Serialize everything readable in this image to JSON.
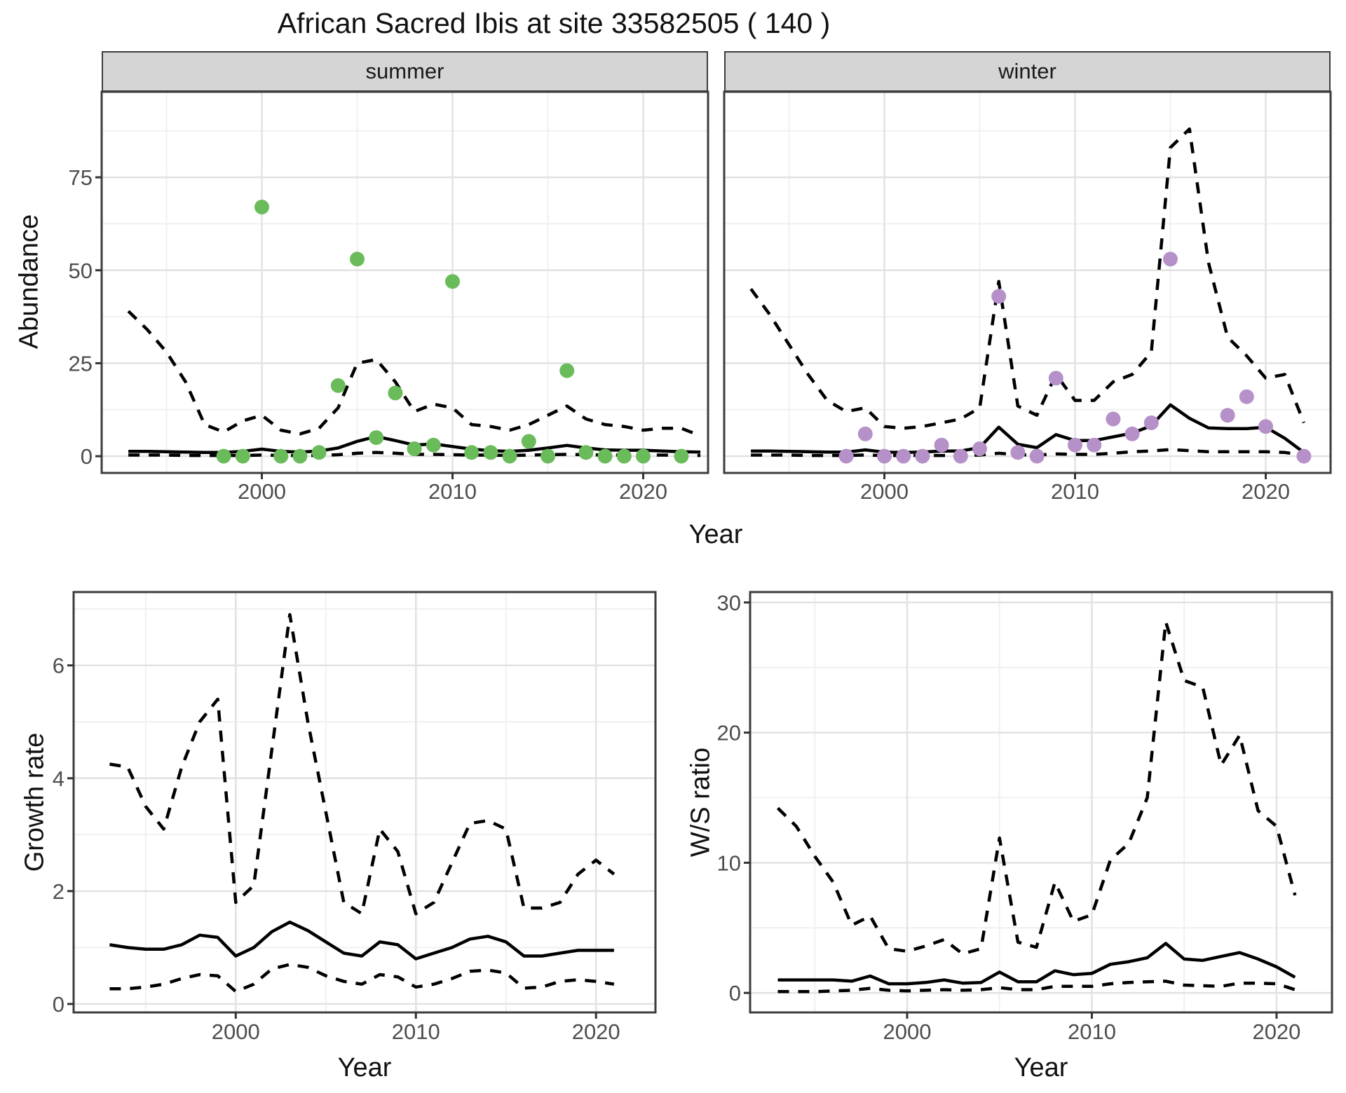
{
  "title": "African Sacred Ibis at site 33582505 ( 140 )",
  "colors": {
    "summer_point": "#6abc5b",
    "winter_point": "#b691c9",
    "line": "#000000",
    "strip_bg": "#d5d5d5",
    "panel_border": "#3c3c3c",
    "grid_major": "#e2e2e2",
    "grid_minor": "#f0f0f0",
    "tick_text": "#4d4d4d",
    "tick_mark": "#333333"
  },
  "chart_data": [
    {
      "type": "scatter",
      "facet_label": "summer",
      "xlabel": "Year",
      "ylabel": "Abundance",
      "xlim": [
        1991.6,
        2023.4
      ],
      "ylim": [
        -4.5,
        98
      ],
      "x_ticks": [
        2000,
        2010,
        2020
      ],
      "x_minor": [
        1995,
        2005,
        2015
      ],
      "y_ticks": [
        0,
        25,
        50,
        75
      ],
      "y_minor": [
        12.5,
        37.5,
        62.5,
        87.5
      ],
      "points": {
        "x": [
          1998,
          1999,
          2000,
          2001,
          2002,
          2003,
          2004,
          2005,
          2006,
          2007,
          2008,
          2009,
          2010,
          2011,
          2012,
          2013,
          2014,
          2015,
          2016,
          2017,
          2018,
          2019,
          2020,
          2022
        ],
        "y": [
          0,
          0,
          67,
          0,
          0,
          1,
          19,
          53,
          5,
          17,
          2,
          3,
          47,
          1,
          1,
          0,
          4,
          0,
          23,
          1,
          0,
          0,
          0,
          0
        ]
      },
      "series": [
        {
          "name": "fit",
          "style": "solid",
          "x": [
            1993,
            1994,
            1995,
            1996,
            1997,
            1998,
            1999,
            2000,
            2001,
            2002,
            2003,
            2004,
            2005,
            2006,
            2007,
            2008,
            2009,
            2010,
            2011,
            2012,
            2013,
            2014,
            2015,
            2016,
            2017,
            2018,
            2019,
            2020,
            2021,
            2022,
            2023
          ],
          "y": [
            1.3,
            1.3,
            1.2,
            1.1,
            1.0,
            1.0,
            1.3,
            1.9,
            1.3,
            1.1,
            1.4,
            2.2,
            4.0,
            5.3,
            4.2,
            3.0,
            3.3,
            2.6,
            1.9,
            1.5,
            1.3,
            1.6,
            2.2,
            2.9,
            2.2,
            1.7,
            1.6,
            1.6,
            1.4,
            1.2,
            1.1
          ]
        },
        {
          "name": "upper-ci",
          "style": "dashed",
          "x": [
            1993,
            1994,
            1995,
            1996,
            1997,
            1998,
            1999,
            2000,
            2001,
            2002,
            2003,
            2004,
            2005,
            2006,
            2007,
            2008,
            2009,
            2010,
            2011,
            2012,
            2013,
            2014,
            2015,
            2016,
            2017,
            2018,
            2019,
            2020,
            2021,
            2022,
            2023
          ],
          "y": [
            39,
            34,
            28,
            20,
            8.5,
            6.5,
            9.5,
            11,
            7,
            6,
            7.5,
            13,
            25,
            26,
            20,
            12,
            14,
            13,
            8.5,
            8,
            7,
            8.5,
            11,
            13.5,
            10,
            8.5,
            8,
            7,
            7.5,
            7.5,
            5.5
          ]
        },
        {
          "name": "lower-ci",
          "style": "dashed",
          "x": [
            1993,
            1994,
            1995,
            1996,
            1997,
            1998,
            1999,
            2000,
            2001,
            2002,
            2003,
            2004,
            2005,
            2006,
            2007,
            2008,
            2009,
            2010,
            2011,
            2012,
            2013,
            2014,
            2015,
            2016,
            2017,
            2018,
            2019,
            2020,
            2021,
            2022,
            2023
          ],
          "y": [
            0.3,
            0.3,
            0.3,
            0.2,
            0.2,
            0.2,
            0.2,
            0.3,
            0.2,
            0.2,
            0.2,
            0.4,
            0.8,
            1.0,
            0.8,
            0.5,
            0.5,
            0.4,
            0.3,
            0.3,
            0.2,
            0.3,
            0.4,
            0.5,
            0.4,
            0.3,
            0.3,
            0.3,
            0.3,
            0.2,
            0.2
          ]
        }
      ]
    },
    {
      "type": "scatter",
      "facet_label": "winter",
      "xlabel": "Year",
      "ylabel": "Abundance",
      "xlim": [
        1991.6,
        2023.4
      ],
      "ylim": [
        -4.5,
        98
      ],
      "x_ticks": [
        2000,
        2010,
        2020
      ],
      "x_minor": [
        1995,
        2005,
        2015
      ],
      "y_ticks": [
        0,
        25,
        50,
        75
      ],
      "y_minor": [
        12.5,
        37.5,
        62.5,
        87.5
      ],
      "points": {
        "x": [
          1998,
          1999,
          2000,
          2001,
          2002,
          2003,
          2004,
          2005,
          2006,
          2007,
          2008,
          2009,
          2010,
          2011,
          2012,
          2013,
          2014,
          2015,
          2018,
          2019,
          2020,
          2022
        ],
        "y": [
          0,
          6,
          0,
          0,
          0,
          3,
          0,
          2,
          43,
          1,
          0,
          21,
          3,
          3,
          10,
          6,
          9,
          53,
          11,
          16,
          8,
          0
        ]
      },
      "series": [
        {
          "name": "fit",
          "style": "solid",
          "x": [
            1993,
            1994,
            1995,
            1996,
            1997,
            1998,
            1999,
            2000,
            2001,
            2002,
            2003,
            2004,
            2005,
            2006,
            2007,
            2008,
            2009,
            2010,
            2011,
            2012,
            2013,
            2014,
            2015,
            2016,
            2017,
            2018,
            2019,
            2020,
            2021,
            2022
          ],
          "y": [
            1.4,
            1.4,
            1.3,
            1.2,
            1.1,
            1.1,
            1.7,
            1.1,
            1.0,
            1.1,
            1.4,
            1.4,
            2.3,
            7.8,
            3.2,
            2.3,
            5.8,
            4.2,
            4.2,
            5.2,
            6.2,
            8.2,
            13.8,
            10.2,
            7.6,
            7.4,
            7.4,
            7.8,
            4.8,
            1.0
          ]
        },
        {
          "name": "upper-ci",
          "style": "dashed",
          "x": [
            1993,
            1994,
            1995,
            1996,
            1997,
            1998,
            1999,
            2000,
            2001,
            2002,
            2003,
            2004,
            2005,
            2006,
            2007,
            2008,
            2009,
            2010,
            2011,
            2012,
            2013,
            2014,
            2015,
            2016,
            2017,
            2018,
            2019,
            2020,
            2021,
            2022
          ],
          "y": [
            45,
            38,
            30,
            22,
            15,
            12,
            13,
            8,
            7.5,
            8,
            9,
            10,
            13,
            47,
            13.5,
            11,
            22,
            15,
            15,
            20,
            22,
            28,
            83,
            88,
            52,
            32,
            27,
            21,
            22,
            9
          ]
        },
        {
          "name": "lower-ci",
          "style": "dashed",
          "x": [
            1993,
            1994,
            1995,
            1996,
            1997,
            1998,
            1999,
            2000,
            2001,
            2002,
            2003,
            2004,
            2005,
            2006,
            2007,
            2008,
            2009,
            2010,
            2011,
            2012,
            2013,
            2014,
            2015,
            2016,
            2017,
            2018,
            2019,
            2020,
            2021,
            2022
          ],
          "y": [
            0.3,
            0.3,
            0.3,
            0.2,
            0.2,
            0.2,
            0.3,
            0.2,
            0.2,
            0.2,
            0.2,
            0.2,
            0.3,
            0.8,
            0.4,
            0.3,
            0.6,
            0.5,
            0.5,
            0.8,
            1.2,
            1.4,
            1.8,
            1.5,
            1.2,
            1.2,
            1.2,
            1.2,
            1.0,
            0.3
          ]
        }
      ]
    },
    {
      "type": "line",
      "facet_label": "",
      "xlabel": "Year",
      "ylabel": "Growth rate",
      "xlim": [
        1991,
        2023.3
      ],
      "ylim": [
        -0.15,
        7.3
      ],
      "x_ticks": [
        2000,
        2010,
        2020
      ],
      "x_minor": [
        1995,
        2005,
        2015
      ],
      "y_ticks": [
        0,
        2,
        4,
        6
      ],
      "y_minor": [
        1,
        3,
        5,
        7
      ],
      "points": null,
      "series": [
        {
          "name": "fit",
          "style": "solid",
          "x": [
            1993,
            1994,
            1995,
            1996,
            1997,
            1998,
            1999,
            2000,
            2001,
            2002,
            2003,
            2004,
            2005,
            2006,
            2007,
            2008,
            2009,
            2010,
            2011,
            2012,
            2013,
            2014,
            2015,
            2016,
            2017,
            2018,
            2019,
            2020,
            2021
          ],
          "y": [
            1.05,
            1.0,
            0.97,
            0.97,
            1.05,
            1.22,
            1.18,
            0.85,
            1.0,
            1.28,
            1.45,
            1.3,
            1.1,
            0.9,
            0.85,
            1.1,
            1.05,
            0.8,
            0.9,
            1.0,
            1.15,
            1.2,
            1.1,
            0.85,
            0.85,
            0.9,
            0.95,
            0.95,
            0.95
          ]
        },
        {
          "name": "upper-ci",
          "style": "dashed",
          "x": [
            1993,
            1994,
            1995,
            1996,
            1997,
            1998,
            1999,
            2000,
            2001,
            2002,
            2003,
            2004,
            2005,
            2006,
            2007,
            2008,
            2009,
            2010,
            2011,
            2012,
            2013,
            2014,
            2015,
            2016,
            2017,
            2018,
            2019,
            2020,
            2021
          ],
          "y": [
            4.25,
            4.2,
            3.5,
            3.1,
            4.2,
            5.0,
            5.4,
            1.8,
            2.1,
            4.5,
            6.9,
            5.0,
            3.4,
            1.8,
            1.6,
            3.1,
            2.7,
            1.6,
            1.8,
            2.5,
            3.2,
            3.25,
            3.1,
            1.7,
            1.7,
            1.8,
            2.3,
            2.55,
            2.3
          ]
        },
        {
          "name": "lower-ci",
          "style": "dashed",
          "x": [
            1993,
            1994,
            1995,
            1996,
            1997,
            1998,
            1999,
            2000,
            2001,
            2002,
            2003,
            2004,
            2005,
            2006,
            2007,
            2008,
            2009,
            2010,
            2011,
            2012,
            2013,
            2014,
            2015,
            2016,
            2017,
            2018,
            2019,
            2020,
            2021
          ],
          "y": [
            0.27,
            0.27,
            0.3,
            0.35,
            0.45,
            0.52,
            0.5,
            0.22,
            0.35,
            0.62,
            0.7,
            0.65,
            0.5,
            0.4,
            0.35,
            0.52,
            0.48,
            0.3,
            0.35,
            0.45,
            0.58,
            0.6,
            0.55,
            0.28,
            0.3,
            0.4,
            0.43,
            0.4,
            0.35
          ]
        }
      ]
    },
    {
      "type": "line",
      "facet_label": "",
      "xlabel": "Year",
      "ylabel": "W/S ratio",
      "xlim": [
        1991.5,
        2023
      ],
      "ylim": [
        -1.5,
        30.8
      ],
      "x_ticks": [
        2000,
        2010,
        2020
      ],
      "x_minor": [
        1995,
        2005,
        2015
      ],
      "y_ticks": [
        0,
        10,
        20,
        30
      ],
      "y_minor": [
        5,
        15,
        25
      ],
      "points": null,
      "series": [
        {
          "name": "fit",
          "style": "solid",
          "x": [
            1993,
            1994,
            1995,
            1996,
            1997,
            1998,
            1999,
            2000,
            2001,
            2002,
            2003,
            2004,
            2005,
            2006,
            2007,
            2008,
            2009,
            2010,
            2011,
            2012,
            2013,
            2014,
            2015,
            2016,
            2017,
            2018,
            2019,
            2020,
            2021
          ],
          "y": [
            1.0,
            1.0,
            1.0,
            1.0,
            0.9,
            1.3,
            0.7,
            0.7,
            0.8,
            1.0,
            0.75,
            0.8,
            1.6,
            0.85,
            0.85,
            1.7,
            1.4,
            1.5,
            2.2,
            2.4,
            2.7,
            3.8,
            2.6,
            2.5,
            2.8,
            3.1,
            2.6,
            2.0,
            1.2
          ]
        },
        {
          "name": "upper-ci",
          "style": "dashed",
          "x": [
            1993,
            1994,
            1995,
            1996,
            1997,
            1998,
            1999,
            2000,
            2001,
            2002,
            2003,
            2004,
            2005,
            2006,
            2007,
            2008,
            2009,
            2010,
            2011,
            2012,
            2013,
            2014,
            2015,
            2016,
            2017,
            2018,
            2019,
            2020,
            2021
          ],
          "y": [
            14.2,
            12.8,
            10.5,
            8.5,
            5.2,
            5.9,
            3.4,
            3.2,
            3.6,
            4.1,
            3.0,
            3.4,
            11.9,
            3.9,
            3.5,
            8.5,
            5.5,
            6.0,
            10.2,
            11.5,
            15.0,
            28.5,
            24.0,
            23.5,
            17.5,
            19.8,
            14.0,
            12.8,
            7.5
          ]
        },
        {
          "name": "lower-ci",
          "style": "dashed",
          "x": [
            1993,
            1994,
            1995,
            1996,
            1997,
            1998,
            1999,
            2000,
            2001,
            2002,
            2003,
            2004,
            2005,
            2006,
            2007,
            2008,
            2009,
            2010,
            2011,
            2012,
            2013,
            2014,
            2015,
            2016,
            2017,
            2018,
            2019,
            2020,
            2021
          ],
          "y": [
            0.1,
            0.1,
            0.1,
            0.15,
            0.2,
            0.35,
            0.2,
            0.15,
            0.2,
            0.25,
            0.2,
            0.25,
            0.4,
            0.25,
            0.25,
            0.5,
            0.5,
            0.5,
            0.7,
            0.8,
            0.85,
            0.9,
            0.6,
            0.55,
            0.5,
            0.75,
            0.75,
            0.7,
            0.25
          ]
        }
      ]
    }
  ]
}
